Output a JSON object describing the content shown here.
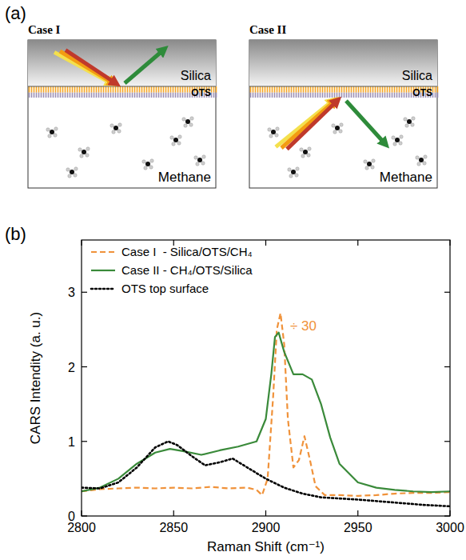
{
  "panels": {
    "a": "(a)",
    "b": "(b)"
  },
  "diagram": {
    "cases": [
      {
        "title": "Case I",
        "layers": [
          "Silica",
          "OTS",
          "Methane"
        ]
      },
      {
        "title": "Case II",
        "layers": [
          "Silica",
          "OTS",
          "Methane"
        ]
      }
    ]
  },
  "chart_data": {
    "type": "line",
    "xlabel": "Raman Shift (cm⁻¹)",
    "ylabel": "CARS Intendity (a. u.)",
    "xlim": [
      2800,
      3000
    ],
    "ylim": [
      0,
      3.7
    ],
    "xticks": [
      2800,
      2850,
      2900,
      2950,
      3000
    ],
    "yticks": [
      0,
      1,
      2,
      3
    ],
    "legend": "upper left",
    "annotations": [
      {
        "text": "÷ 30",
        "color": "#f0923a"
      }
    ],
    "series": [
      {
        "name": "Case I  - Silica/OTS/CH₄",
        "color": "#f0923a",
        "line_style": "dashed",
        "x": [
          2800,
          2810,
          2820,
          2830,
          2840,
          2850,
          2860,
          2870,
          2880,
          2890,
          2895,
          2898,
          2901,
          2904,
          2906,
          2908,
          2910,
          2912,
          2915,
          2918,
          2921,
          2924,
          2927,
          2932,
          2940,
          2950,
          2960,
          2970,
          2980,
          2990,
          3000
        ],
        "values": [
          0.33,
          0.36,
          0.37,
          0.38,
          0.37,
          0.38,
          0.37,
          0.39,
          0.37,
          0.38,
          0.35,
          0.28,
          0.5,
          1.6,
          2.5,
          2.72,
          2.3,
          1.3,
          0.65,
          0.75,
          1.07,
          0.75,
          0.4,
          0.28,
          0.28,
          0.27,
          0.28,
          0.3,
          0.31,
          0.31,
          0.32
        ]
      },
      {
        "name": "Case II - CH₄/OTS/Silica",
        "color": "#3a8a3a",
        "line_style": "solid",
        "x": [
          2800,
          2810,
          2820,
          2830,
          2840,
          2848,
          2855,
          2865,
          2875,
          2885,
          2895,
          2900,
          2903,
          2905,
          2907,
          2910,
          2915,
          2920,
          2925,
          2930,
          2935,
          2940,
          2950,
          2960,
          2970,
          2980,
          2990,
          3000
        ],
        "values": [
          0.33,
          0.38,
          0.5,
          0.7,
          0.85,
          0.9,
          0.87,
          0.82,
          0.88,
          0.93,
          1.0,
          1.3,
          1.9,
          2.4,
          2.46,
          2.2,
          1.9,
          1.9,
          1.83,
          1.5,
          1.05,
          0.7,
          0.45,
          0.38,
          0.35,
          0.33,
          0.32,
          0.33
        ]
      },
      {
        "name": "OTS top surface",
        "color": "#000000",
        "line_style": "dotted",
        "x": [
          2800,
          2810,
          2820,
          2830,
          2840,
          2847,
          2852,
          2860,
          2867,
          2875,
          2882,
          2890,
          2900,
          2910,
          2920,
          2930,
          2950,
          2970,
          2985,
          3000
        ],
        "values": [
          0.38,
          0.37,
          0.45,
          0.65,
          0.92,
          1.0,
          0.95,
          0.8,
          0.68,
          0.72,
          0.77,
          0.65,
          0.5,
          0.38,
          0.3,
          0.25,
          0.22,
          0.18,
          0.15,
          0.13
        ]
      }
    ]
  }
}
